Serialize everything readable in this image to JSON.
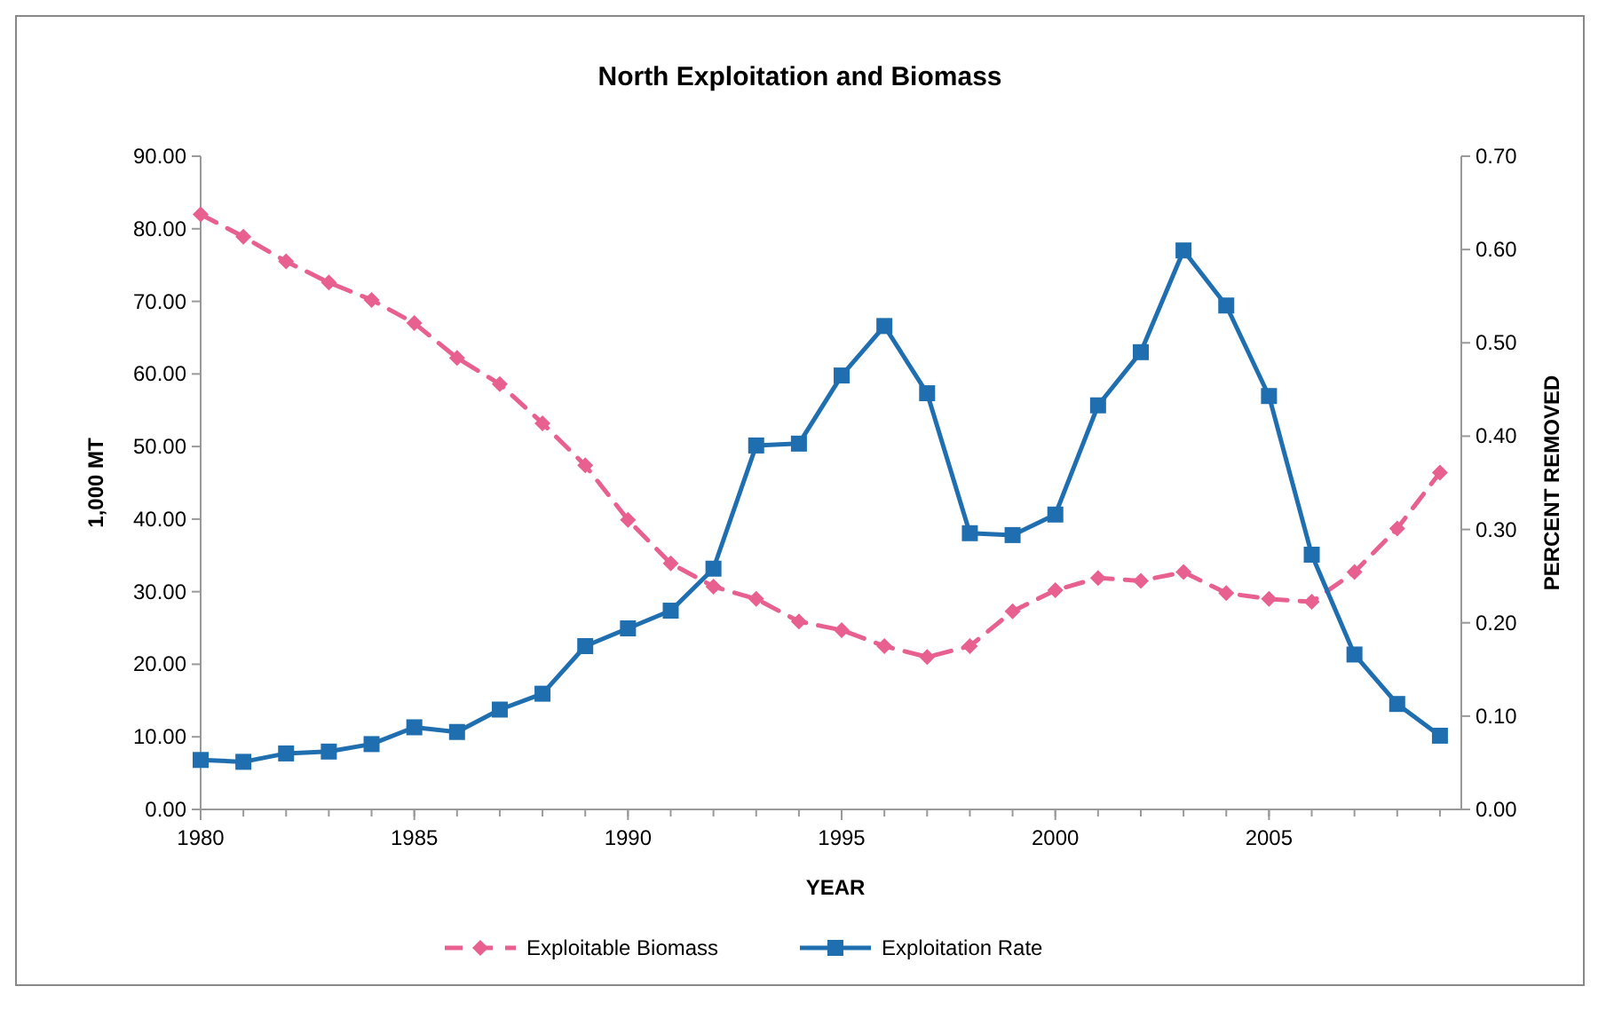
{
  "chart_data": {
    "type": "line",
    "title": "North Exploitation and Biomass",
    "xlabel": "YEAR",
    "ylabel": "1,000 MT",
    "y2label": "PERCENT REMOVED",
    "x": [
      1980,
      1981,
      1982,
      1983,
      1984,
      1985,
      1986,
      1987,
      1988,
      1989,
      1990,
      1991,
      1992,
      1993,
      1994,
      1995,
      1996,
      1997,
      1998,
      1999,
      2000,
      2001,
      2002,
      2003,
      2004,
      2005,
      2006,
      2007,
      2008,
      2009
    ],
    "series": [
      {
        "name": "Exploitable Biomass",
        "color": "#e8608f",
        "marker": "diamond",
        "line_style": "dashed",
        "values": [
          82.0,
          78.9,
          75.5,
          72.6,
          70.2,
          67.0,
          62.2,
          58.6,
          53.2,
          47.4,
          39.9,
          33.9,
          30.7,
          29.0,
          25.9,
          24.7,
          22.5,
          21.0,
          22.5,
          27.3,
          30.2,
          31.9,
          31.5,
          32.7,
          29.8,
          29.0,
          28.6,
          32.7,
          38.7,
          46.4
        ]
      },
      {
        "name": "Exploitation Rate",
        "color": "#1f6fb0",
        "marker": "square",
        "line_style": "solid",
        "axis": "y2",
        "values": [
          0.053,
          0.051,
          0.06,
          0.062,
          0.07,
          0.088,
          0.083,
          0.107,
          0.124,
          0.175,
          0.194,
          0.213,
          0.258,
          0.39,
          0.392,
          0.465,
          0.518,
          0.446,
          0.296,
          0.294,
          0.316,
          0.433,
          0.49,
          0.599,
          0.54,
          0.443,
          0.273,
          0.166,
          0.113,
          0.079
        ]
      }
    ],
    "xlim": [
      1980,
      2009.5
    ],
    "xticks": [
      1980,
      1985,
      1990,
      1995,
      2000,
      2005
    ],
    "ylim": [
      0,
      90
    ],
    "yticks": [
      {
        "value": 0,
        "label": "0.00"
      },
      {
        "value": 10,
        "label": "10.00"
      },
      {
        "value": 20,
        "label": "20.00"
      },
      {
        "value": 30,
        "label": "30.00"
      },
      {
        "value": 40,
        "label": "40.00"
      },
      {
        "value": 50,
        "label": "50.00"
      },
      {
        "value": 60,
        "label": "60.00"
      },
      {
        "value": 70,
        "label": "70.00"
      },
      {
        "value": 80,
        "label": "80.00"
      },
      {
        "value": 90,
        "label": "90.00"
      }
    ],
    "y2lim": [
      0,
      0.7
    ],
    "y2ticks": [
      {
        "value": 0,
        "label": "0.00"
      },
      {
        "value": 0.1,
        "label": "0.10"
      },
      {
        "value": 0.2,
        "label": "0.20"
      },
      {
        "value": 0.3,
        "label": "0.30"
      },
      {
        "value": 0.4,
        "label": "0.40"
      },
      {
        "value": 0.5,
        "label": "0.50"
      },
      {
        "value": 0.6,
        "label": "0.60"
      },
      {
        "value": 0.7,
        "label": "0.70"
      }
    ],
    "grid": false,
    "legend": "bottom"
  }
}
